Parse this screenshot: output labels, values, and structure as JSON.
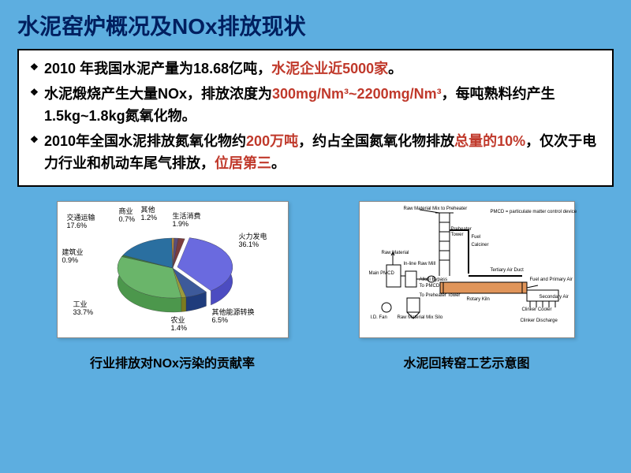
{
  "title": "水泥窑炉概况及NOx排放现状",
  "bullets": {
    "b1a": "2010 年我国水泥产量为18.68亿吨，",
    "b1b": "水泥企业近5000家",
    "b1c": "。",
    "b2a": "水泥煅烧产生大量NOx，排放浓度为",
    "b2b": "300mg/Nm³~2200mg/Nm³",
    "b2c": "，每吨熟料约产生1.5kg~1.8kg氮氧化物。",
    "b3a": "2010年全国水泥排放氮氧化物约",
    "b3b": "200万吨",
    "b3c": "，约占全国氮氧化物排放",
    "b3d": "总量的10%",
    "b3e": "，仅次于电力行业和机动车尾气排放，",
    "b3f": "位居第三",
    "b3g": "。"
  },
  "pie": {
    "type": "pie",
    "slices": [
      {
        "label": "火力发电",
        "value": 36.1,
        "color": "#6a6adf"
      },
      {
        "label": "其他能源转换",
        "value": 6.5,
        "color": "#3d5a9a"
      },
      {
        "label": "农业",
        "value": 1.4,
        "color": "#9a9a3d"
      },
      {
        "label": "工业",
        "value": 33.7,
        "color": "#6ab56a"
      },
      {
        "label": "建筑业",
        "value": 0.9,
        "color": "#3d7a3d"
      },
      {
        "label": "交通运输",
        "value": 17.6,
        "color": "#2a6fa0"
      },
      {
        "label": "商业",
        "value": 0.7,
        "color": "#b58a3d"
      },
      {
        "label": "其他",
        "value": 1.2,
        "color": "#5a4d7a"
      },
      {
        "label": "生活消费",
        "value": 1.9,
        "color": "#7a3d3d"
      }
    ],
    "label_fontsize": 9,
    "background_color": "#ffffff",
    "label_texts": {
      "l1": "交通运输",
      "l1v": "17.6%",
      "l2": "商业",
      "l2v": "0.7%",
      "l3": "其他",
      "l3v": "1.2%",
      "l4": "生活消费",
      "l4v": "1.9%",
      "l5": "火力发电",
      "l5v": "36.1%",
      "l6": "其他能源转换",
      "l6v": "6.5%",
      "l7": "农业",
      "l7v": "1.4%",
      "l8": "工业",
      "l8v": "33.7%",
      "l9": "建筑业",
      "l9v": "0.9%"
    }
  },
  "diagram": {
    "type": "flowchart",
    "background_color": "#ffffff",
    "line_color": "#000000",
    "kiln_color": "#e0955a",
    "labels": {
      "top": "Raw Material Mix to Preheater",
      "pmcd": "PMCD = particulate matter control device",
      "preheater": "Preheater",
      "tower": "Tower",
      "fuel": "Fuel",
      "calciner": "Calciner",
      "tertiary": "Tertiary Air Duct",
      "raw_material": "Raw Material",
      "main_pmcd": "Main PMCD",
      "inline": "In-line Raw Mill",
      "alkali": "Alkali Bypass",
      "to_pmcd": "To PMCD",
      "to_preheater": "To Preheater Tower",
      "id_fan": "I.D. Fan",
      "raw_silo": "Raw Material Mix Silo",
      "rotary_kiln": "Rotary Kiln",
      "fuel_primary": "Fuel and Primary Air",
      "secondary": "Secondary Air",
      "clinker_cooler": "Clinker Cooler",
      "clinker_discharge": "Clinker Discharge"
    }
  },
  "captions": {
    "left": "行业排放对NOx污染的贡献率",
    "right": "水泥回转窑工艺示意图"
  }
}
